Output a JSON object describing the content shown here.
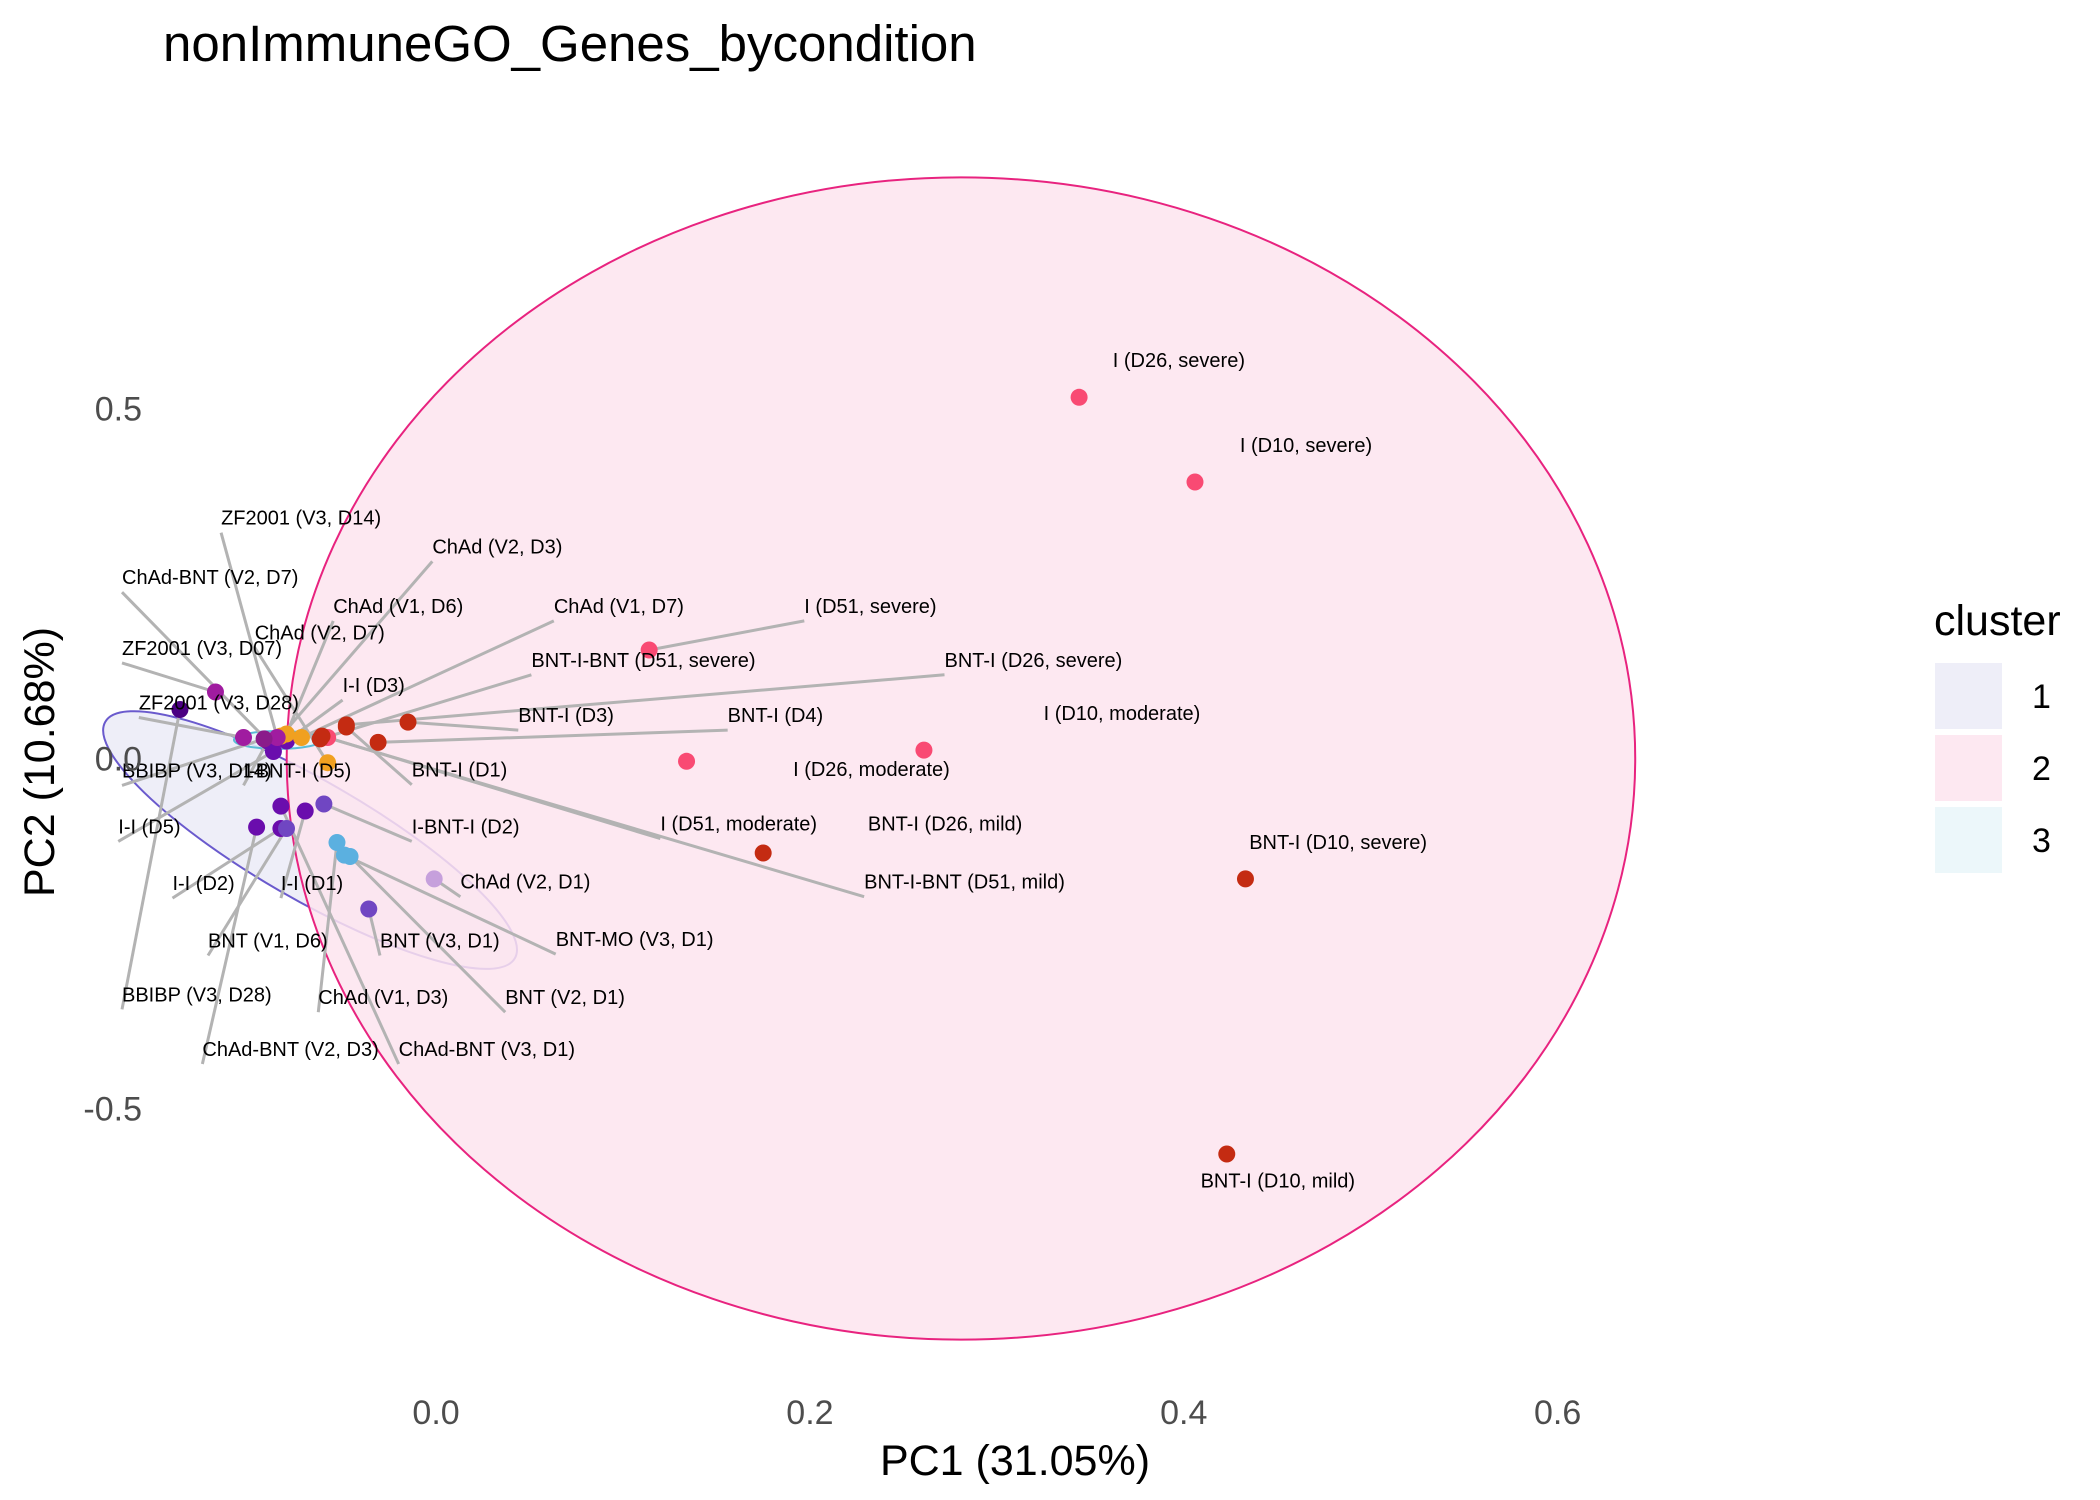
{
  "chart_data": {
    "type": "scatter",
    "title": "nonImmuneGO_Genes_bycondition",
    "xlabel": "PC1 (31.05%)",
    "ylabel": "PC2 (10.68%)",
    "xlim": [
      -0.145,
      0.735
    ],
    "ylim": [
      -0.905,
      0.905
    ],
    "x_ticks": [
      0.0,
      0.2,
      0.4,
      0.6
    ],
    "x_tick_labels": [
      "0.0",
      "0.2",
      "0.4",
      "0.6"
    ],
    "y_ticks": [
      -0.5,
      0.0,
      0.5
    ],
    "y_tick_labels": [
      "-0.5",
      "0.0",
      "0.5"
    ],
    "grid": false,
    "legend": {
      "title": "cluster",
      "position": "right",
      "entries": [
        {
          "label": "1",
          "fill": "#ebebf7",
          "stroke": "#6a5acd"
        },
        {
          "label": "2",
          "fill": "#fde4ef",
          "stroke": "#e8237f"
        },
        {
          "label": "3",
          "fill": "#e9f6f9",
          "stroke": "#5bbcd6"
        }
      ]
    },
    "ellipses": [
      {
        "cluster": "1",
        "cx": -0.0674,
        "cy": -0.1165,
        "rx": 0.1265,
        "ry": 0.0845,
        "angle_deg": 30,
        "fill": "#ebebf7",
        "stroke": "#6a5acd"
      },
      {
        "cluster": "2",
        "cx": 0.2808,
        "cy": 0.0,
        "rx": 0.3607,
        "ry": 0.8302,
        "angle_deg": 0,
        "fill": "#fde4ef",
        "stroke": "#e8237f"
      },
      {
        "cluster": "3",
        "cx": -0.0845,
        "cy": 0.0265,
        "rx": 0.0236,
        "ry": 0.0127,
        "angle_deg": 0,
        "fill": "#e9f6f9",
        "stroke": "#5bbcd6"
      }
    ],
    "points": [
      {
        "label": "I (D26, severe)",
        "x": 0.344,
        "y": 0.516,
        "color": "#f94a73",
        "lx": 0.362,
        "ly": 0.559,
        "leader": false
      },
      {
        "label": "I (D10, severe)",
        "x": 0.406,
        "y": 0.395,
        "color": "#f94a73",
        "lx": 0.43,
        "ly": 0.438,
        "leader": false
      },
      {
        "label": "I (D10, moderate)",
        "x": 0.261,
        "y": 0.012,
        "color": "#f94a73",
        "lx": 0.325,
        "ly": 0.055,
        "leader": false
      },
      {
        "label": "I (D26, moderate)",
        "x": 0.134,
        "y": -0.004,
        "color": "#f94a73",
        "lx": 0.191,
        "ly": -0.025,
        "leader": false
      },
      {
        "label": "I (D51, severe)",
        "x": 0.114,
        "y": 0.155,
        "color": "#f94a73",
        "lx": 0.197,
        "ly": 0.208,
        "leader": true
      },
      {
        "label": "I (D51, moderate)",
        "x": -0.058,
        "y": 0.03,
        "color": "#f94a73",
        "lx": 0.12,
        "ly": -0.103,
        "leader": true
      },
      {
        "label": "BNT-I (D26, mild)",
        "x": 0.175,
        "y": -0.135,
        "color": "#c42b12",
        "lx": 0.231,
        "ly": -0.103,
        "leader": false
      },
      {
        "label": "BNT-I (D10, severe)",
        "x": 0.433,
        "y": -0.172,
        "color": "#c42b12",
        "lx": 0.435,
        "ly": -0.129,
        "leader": false
      },
      {
        "label": "BNT-I (D10, mild)",
        "x": 0.423,
        "y": -0.565,
        "color": "#c42b12",
        "lx": 0.409,
        "ly": -0.613,
        "leader": false
      },
      {
        "label": "BNT-I (D26, severe)",
        "x": -0.048,
        "y": 0.048,
        "color": "#c42b12",
        "lx": 0.272,
        "ly": 0.131,
        "leader": true
      },
      {
        "label": "BNT-I (D4)",
        "x": -0.031,
        "y": 0.023,
        "color": "#c42b12",
        "lx": 0.156,
        "ly": 0.052,
        "leader": true
      },
      {
        "label": "BNT-I (D3)",
        "x": -0.015,
        "y": 0.052,
        "color": "#c42b12",
        "lx": 0.044,
        "ly": 0.052,
        "leader": true
      },
      {
        "label": "BNT-I (D1)",
        "x": -0.048,
        "y": 0.045,
        "color": "#c42b12",
        "lx": -0.013,
        "ly": -0.026,
        "leader": true
      },
      {
        "label": "BNT-I-BNT (D51, severe)",
        "x": -0.062,
        "y": 0.028,
        "color": "#c42b12",
        "lx": 0.051,
        "ly": 0.131,
        "leader": true
      },
      {
        "label": "BNT-I-BNT (D51, mild)",
        "x": -0.061,
        "y": 0.032,
        "color": "#c42b12",
        "lx": 0.229,
        "ly": -0.186,
        "leader": true
      },
      {
        "label": "I-BNT-I (D2)",
        "x": -0.06,
        "y": -0.065,
        "color": "#7046c2",
        "lx": -0.013,
        "ly": -0.107,
        "leader": true
      },
      {
        "label": "I-I (D1)",
        "x": -0.07,
        "y": -0.075,
        "color": "#6a0dad",
        "lx": -0.083,
        "ly": -0.188,
        "leader": true
      },
      {
        "label": "I-I (D2)",
        "x": -0.083,
        "y": -0.1,
        "color": "#6a0dad",
        "lx": -0.141,
        "ly": -0.188,
        "leader": true
      },
      {
        "label": "I-I (D5)",
        "x": -0.087,
        "y": 0.01,
        "color": "#6a0dad",
        "lx": -0.17,
        "ly": -0.107,
        "leader": true
      },
      {
        "label": "I-I (D3)",
        "x": -0.08,
        "y": 0.025,
        "color": "#6a0dad",
        "lx": -0.05,
        "ly": 0.095,
        "leader": true
      },
      {
        "label": "I-BNT-I (D5)",
        "x": -0.09,
        "y": 0.025,
        "color": "#6a0dad",
        "lx": -0.103,
        "ly": -0.027,
        "leader": true
      },
      {
        "label": "BNT (V3, D1)",
        "x": -0.036,
        "y": -0.215,
        "color": "#7046c2",
        "lx": -0.03,
        "ly": -0.27,
        "leader": true
      },
      {
        "label": "BNT (V1, D6)",
        "x": -0.08,
        "y": -0.1,
        "color": "#7046c2",
        "lx": -0.122,
        "ly": -0.27,
        "leader": true
      },
      {
        "label": "BNT (V2, D1)",
        "x": -0.046,
        "y": -0.14,
        "color": "#5bb0e0",
        "lx": 0.037,
        "ly": -0.351,
        "leader": true
      },
      {
        "label": "BNT-MO (V3, D1)",
        "x": -0.049,
        "y": -0.138,
        "color": "#5bb0e0",
        "lx": 0.064,
        "ly": -0.268,
        "leader": true
      },
      {
        "label": "ChAd (V2, D1)",
        "x": -0.001,
        "y": -0.172,
        "color": "#c6a0dc",
        "lx": 0.013,
        "ly": -0.186,
        "leader": true
      },
      {
        "label": "ChAd (V1, D3)",
        "x": -0.053,
        "y": -0.12,
        "color": "#5bb0e0",
        "lx": -0.063,
        "ly": -0.351,
        "leader": true
      },
      {
        "label": "ChAd (V2, D3)",
        "x": -0.083,
        "y": 0.032,
        "color": "#f0a020",
        "lx": -0.002,
        "ly": 0.293,
        "leader": true
      },
      {
        "label": "ChAd (V1, D6)",
        "x": -0.08,
        "y": 0.035,
        "color": "#f0a020",
        "lx": -0.055,
        "ly": 0.208,
        "leader": true
      },
      {
        "label": "ChAd (V1, D7)",
        "x": -0.072,
        "y": 0.03,
        "color": "#f0a020",
        "lx": 0.063,
        "ly": 0.208,
        "leader": true
      },
      {
        "label": "ChAd (V2, D7)",
        "x": -0.058,
        "y": -0.006,
        "color": "#f0a020",
        "lx": -0.097,
        "ly": 0.17,
        "leader": true
      },
      {
        "label": "ChAd-BNT (V2, D7)",
        "x": -0.09,
        "y": 0.025,
        "color": "#6a0dad",
        "lx": -0.168,
        "ly": 0.249,
        "leader": true
      },
      {
        "label": "ChAd-BNT (V2, D3)",
        "x": -0.096,
        "y": -0.098,
        "color": "#6a0dad",
        "lx": -0.125,
        "ly": -0.425,
        "leader": true
      },
      {
        "label": "ChAd-BNT (V3, D1)",
        "x": -0.083,
        "y": -0.068,
        "color": "#6a0dad",
        "lx": -0.02,
        "ly": -0.425,
        "leader": true
      },
      {
        "label": "ZF2001 (V3, D14)",
        "x": -0.085,
        "y": 0.03,
        "color": "#a01ca0",
        "lx": -0.115,
        "ly": 0.334,
        "leader": true
      },
      {
        "label": "ZF2001 (V3, D07)",
        "x": -0.118,
        "y": 0.095,
        "color": "#a01ca0",
        "lx": -0.168,
        "ly": 0.148,
        "leader": true
      },
      {
        "label": "ZF2001 (V3, D28)",
        "x": -0.103,
        "y": 0.03,
        "color": "#a01ca0",
        "lx": -0.159,
        "ly": 0.07,
        "leader": true
      },
      {
        "label": "BBIBP (V3, D14)",
        "x": -0.092,
        "y": 0.028,
        "color": "#8a1c8a",
        "lx": -0.168,
        "ly": -0.027,
        "leader": true
      },
      {
        "label": "BBIBP (V3, D28)",
        "x": -0.137,
        "y": 0.07,
        "color": "#4b0082",
        "lx": -0.168,
        "ly": -0.347,
        "leader": true
      }
    ]
  }
}
